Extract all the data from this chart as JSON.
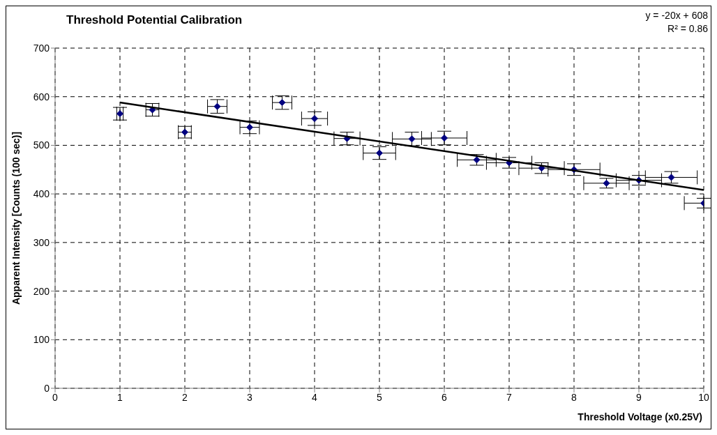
{
  "chart_data": {
    "type": "scatter",
    "title": "Threshold Potential Calibration",
    "xlabel": "Threshold Voltage (x0.25V)",
    "ylabel": "Apparent Intensity [Counts (100 sec)]",
    "annotations": [
      "y = -20x + 608",
      "R² = 0.86"
    ],
    "xlim": [
      0,
      10
    ],
    "xticks": [
      0,
      1,
      2,
      3,
      4,
      5,
      6,
      7,
      8,
      9,
      10
    ],
    "ylim": [
      0,
      700
    ],
    "yticks": [
      0,
      100,
      200,
      300,
      400,
      500,
      600,
      700
    ],
    "grid": true,
    "series": [
      {
        "marker": "diamond",
        "color": "#000080",
        "x": [
          1,
          1.5,
          2,
          2.5,
          3,
          3.5,
          4,
          4.5,
          5,
          5.5,
          6,
          6.5,
          7,
          7.5,
          8,
          8.5,
          9,
          9.5,
          10
        ],
        "values": [
          565,
          573,
          527,
          580,
          537,
          588,
          555,
          514,
          484,
          513,
          515,
          470,
          464,
          453,
          450,
          422,
          428,
          434,
          381
        ],
        "errors": [
          13,
          13,
          12,
          14,
          13,
          14,
          14,
          13,
          13,
          14,
          14,
          11,
          11,
          11,
          12,
          10,
          10,
          12,
          10
        ],
        "xerrors": [
          0.05,
          0.1,
          0.1,
          0.15,
          0.15,
          0.15,
          0.2,
          0.2,
          0.25,
          0.3,
          0.35,
          0.3,
          0.35,
          0.35,
          0.4,
          0.35,
          0.35,
          0.4,
          [
            9.7,
            10
          ]
        ]
      },
      {
        "type": "line",
        "color": "#000000",
        "x": [
          1,
          10
        ],
        "values": [
          588,
          408
        ],
        "line_style": "solid",
        "marker": "none"
      }
    ]
  }
}
